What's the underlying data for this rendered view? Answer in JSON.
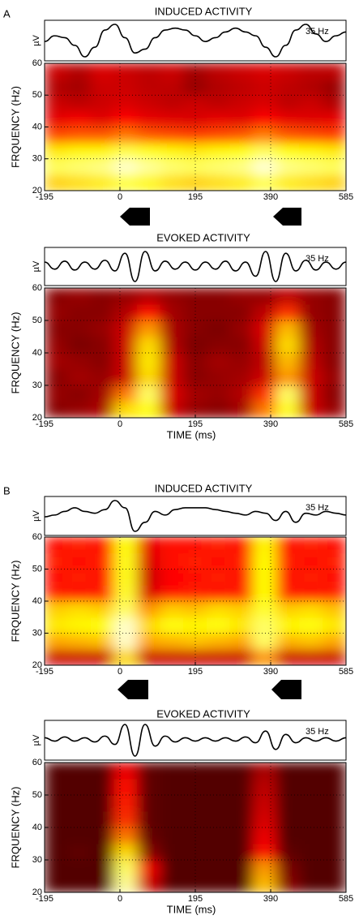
{
  "chart_data": [
    {
      "type": "heatmap",
      "panel": "A",
      "title": "INDUCED ACTIVITY",
      "ylabel": "FRQUENCY (Hz)",
      "xlim": [
        -195,
        585
      ],
      "xticks": [
        -195,
        0,
        195,
        390,
        585
      ],
      "ylim": [
        20,
        60
      ],
      "yticks": [
        20,
        30,
        40,
        50,
        60
      ],
      "grid": true,
      "wave_label": "µV",
      "wave_annotation": "35 Hz",
      "wave_x": [
        -195,
        -169,
        -143,
        -117,
        -91,
        -65,
        -39,
        -13,
        13,
        39,
        65,
        91,
        117,
        143,
        169,
        195,
        221,
        247,
        273,
        299,
        325,
        351,
        377,
        403,
        429,
        455,
        481,
        507,
        533,
        559,
        585
      ],
      "wave": [
        0,
        0.3,
        0.2,
        -0.2,
        -0.8,
        -0.3,
        0.6,
        0.9,
        0.2,
        -0.6,
        -0.4,
        0.2,
        0.6,
        0.7,
        0.6,
        0.3,
        0,
        0.2,
        0.5,
        0.7,
        0.5,
        0.3,
        -0.3,
        -0.8,
        -0.2,
        0.6,
        0.9,
        0.4,
        0,
        0.3,
        0.5
      ],
      "x": [
        -165,
        -105,
        -45,
        15,
        75,
        135,
        195,
        255,
        315,
        375,
        435,
        495,
        555
      ],
      "y": [
        22.5,
        27.5,
        32.5,
        37.5,
        42.5,
        47.5,
        52.5,
        57.5
      ],
      "z": [
        [
          0.68,
          0.7,
          0.72,
          0.8,
          0.74,
          0.7,
          0.68,
          0.7,
          0.72,
          0.82,
          0.72,
          0.7,
          0.68
        ],
        [
          0.84,
          0.86,
          0.88,
          0.95,
          0.9,
          0.86,
          0.84,
          0.86,
          0.88,
          0.96,
          0.88,
          0.86,
          0.84
        ],
        [
          0.72,
          0.74,
          0.74,
          0.82,
          0.78,
          0.74,
          0.72,
          0.74,
          0.76,
          0.84,
          0.76,
          0.74,
          0.72
        ],
        [
          0.48,
          0.5,
          0.5,
          0.55,
          0.5,
          0.48,
          0.46,
          0.48,
          0.5,
          0.56,
          0.5,
          0.48,
          0.46
        ],
        [
          0.34,
          0.36,
          0.33,
          0.38,
          0.34,
          0.33,
          0.32,
          0.34,
          0.33,
          0.38,
          0.34,
          0.33,
          0.34
        ],
        [
          0.3,
          0.28,
          0.3,
          0.32,
          0.3,
          0.28,
          0.3,
          0.28,
          0.3,
          0.32,
          0.28,
          0.3,
          0.26
        ],
        [
          0.26,
          0.24,
          0.3,
          0.3,
          0.28,
          0.28,
          0.22,
          0.26,
          0.28,
          0.3,
          0.28,
          0.26,
          0.22
        ],
        [
          0.3,
          0.26,
          0.32,
          0.3,
          0.28,
          0.3,
          0.24,
          0.28,
          0.3,
          0.32,
          0.3,
          0.28,
          0.28
        ]
      ]
    },
    {
      "type": "heatmap",
      "title": "EVOKED ACTIVITY",
      "ylabel": "FRQUENCY (Hz)",
      "xlabel": "TIME (ms)",
      "xlim": [
        -195,
        585
      ],
      "xticks": [
        -195,
        0,
        195,
        390,
        585
      ],
      "ylim": [
        20,
        60
      ],
      "yticks": [
        20,
        30,
        40,
        50,
        60
      ],
      "grid": true,
      "wave_label": "µV",
      "wave_annotation": "35 Hz",
      "wave_x": [
        -195,
        -169,
        -143,
        -117,
        -91,
        -65,
        -39,
        -13,
        13,
        39,
        65,
        91,
        117,
        143,
        169,
        195,
        221,
        247,
        273,
        299,
        325,
        351,
        377,
        403,
        429,
        455,
        481,
        507,
        533,
        559,
        585
      ],
      "wave": [
        0.2,
        -0.2,
        0.25,
        -0.25,
        0.2,
        -0.2,
        0.3,
        -0.3,
        0.7,
        -0.9,
        0.8,
        -0.3,
        0.25,
        -0.2,
        0.2,
        -0.25,
        0.2,
        -0.2,
        0.25,
        -0.3,
        0.2,
        -0.6,
        0.8,
        -0.9,
        0.7,
        -0.3,
        0.3,
        -0.25,
        0.2,
        -0.2,
        0.2
      ],
      "x": [
        -165,
        -105,
        -45,
        15,
        75,
        135,
        195,
        255,
        315,
        375,
        435,
        495,
        555
      ],
      "y": [
        22.5,
        27.5,
        32.5,
        37.5,
        42.5,
        47.5,
        52.5,
        57.5
      ],
      "z": [
        [
          0.2,
          0.22,
          0.25,
          0.7,
          0.75,
          0.3,
          0.22,
          0.2,
          0.24,
          0.55,
          0.78,
          0.3,
          0.22
        ],
        [
          0.22,
          0.2,
          0.24,
          0.55,
          0.85,
          0.32,
          0.24,
          0.22,
          0.26,
          0.45,
          0.85,
          0.3,
          0.2
        ],
        [
          0.2,
          0.24,
          0.22,
          0.3,
          0.7,
          0.3,
          0.2,
          0.22,
          0.24,
          0.3,
          0.6,
          0.3,
          0.22
        ],
        [
          0.24,
          0.22,
          0.2,
          0.3,
          0.72,
          0.3,
          0.2,
          0.24,
          0.22,
          0.28,
          0.65,
          0.28,
          0.2
        ],
        [
          0.22,
          0.18,
          0.2,
          0.3,
          0.7,
          0.26,
          0.18,
          0.2,
          0.2,
          0.3,
          0.7,
          0.26,
          0.2
        ],
        [
          0.2,
          0.2,
          0.22,
          0.3,
          0.6,
          0.25,
          0.2,
          0.18,
          0.22,
          0.32,
          0.65,
          0.24,
          0.2
        ],
        [
          0.22,
          0.2,
          0.2,
          0.26,
          0.4,
          0.24,
          0.2,
          0.2,
          0.2,
          0.28,
          0.45,
          0.22,
          0.2
        ],
        [
          0.2,
          0.22,
          0.2,
          0.22,
          0.26,
          0.22,
          0.2,
          0.2,
          0.22,
          0.22,
          0.28,
          0.22,
          0.2
        ]
      ]
    },
    {
      "type": "heatmap",
      "panel": "B",
      "title": "INDUCED ACTIVITY",
      "ylabel": "FRQUENCY (Hz)",
      "xlim": [
        -195,
        585
      ],
      "xticks": [
        -195,
        0,
        195,
        390,
        585
      ],
      "ylim": [
        20,
        60
      ],
      "yticks": [
        20,
        30,
        40,
        50,
        60
      ],
      "grid": true,
      "wave_label": "µV",
      "wave_annotation": "35 Hz",
      "wave_x": [
        -195,
        -169,
        -143,
        -117,
        -91,
        -65,
        -39,
        -13,
        13,
        39,
        65,
        91,
        117,
        143,
        169,
        195,
        221,
        247,
        273,
        299,
        325,
        351,
        377,
        403,
        429,
        455,
        481,
        507,
        533,
        559,
        585
      ],
      "wave": [
        0,
        0.1,
        0.3,
        0.5,
        0.3,
        0.2,
        0.4,
        0.9,
        0.5,
        -0.8,
        -0.3,
        0.3,
        0.1,
        0.4,
        0.5,
        0.5,
        0.5,
        0.4,
        0.3,
        0.2,
        0.1,
        0.3,
        0.2,
        -0.2,
        0.3,
        -0.3,
        0.2,
        0.1,
        0.3,
        0.2,
        0.1
      ],
      "x": [
        -165,
        -105,
        -45,
        15,
        75,
        135,
        195,
        255,
        315,
        375,
        435,
        495,
        555
      ],
      "y": [
        22.5,
        27.5,
        32.5,
        37.5,
        42.5,
        47.5,
        52.5,
        57.5
      ],
      "z": [
        [
          0.3,
          0.3,
          0.3,
          0.7,
          0.3,
          0.3,
          0.3,
          0.3,
          0.3,
          0.6,
          0.3,
          0.3,
          0.3
        ],
        [
          0.62,
          0.64,
          0.66,
          0.95,
          0.62,
          0.64,
          0.66,
          0.64,
          0.62,
          0.85,
          0.64,
          0.66,
          0.62
        ],
        [
          0.72,
          0.74,
          0.76,
          0.95,
          0.7,
          0.76,
          0.74,
          0.76,
          0.72,
          0.85,
          0.74,
          0.76,
          0.72
        ],
        [
          0.68,
          0.7,
          0.68,
          0.85,
          0.6,
          0.68,
          0.66,
          0.7,
          0.68,
          0.8,
          0.68,
          0.7,
          0.66
        ],
        [
          0.42,
          0.4,
          0.42,
          0.8,
          0.32,
          0.4,
          0.42,
          0.4,
          0.42,
          0.75,
          0.42,
          0.4,
          0.42
        ],
        [
          0.4,
          0.42,
          0.4,
          0.78,
          0.3,
          0.38,
          0.4,
          0.42,
          0.4,
          0.75,
          0.4,
          0.42,
          0.4
        ],
        [
          0.42,
          0.4,
          0.42,
          0.78,
          0.32,
          0.4,
          0.42,
          0.4,
          0.42,
          0.75,
          0.42,
          0.4,
          0.42
        ],
        [
          0.4,
          0.42,
          0.4,
          0.76,
          0.34,
          0.4,
          0.4,
          0.42,
          0.4,
          0.74,
          0.4,
          0.42,
          0.4
        ]
      ]
    },
    {
      "type": "heatmap",
      "title": "EVOKED ACTIVITY",
      "ylabel": "FRQUENCY (Hz)",
      "xlabel": "TIME (ms)",
      "xlim": [
        -195,
        585
      ],
      "xticks": [
        -195,
        0,
        195,
        390,
        585
      ],
      "ylim": [
        20,
        60
      ],
      "yticks": [
        20,
        30,
        40,
        50,
        60
      ],
      "grid": true,
      "wave_label": "µV",
      "wave_annotation": "35 Hz",
      "wave_x": [
        -195,
        -169,
        -143,
        -117,
        -91,
        -65,
        -39,
        -13,
        13,
        39,
        65,
        91,
        117,
        143,
        169,
        195,
        221,
        247,
        273,
        299,
        325,
        351,
        377,
        403,
        429,
        455,
        481,
        507,
        533,
        559,
        585
      ],
      "wave": [
        0.1,
        -0.1,
        0.15,
        -0.1,
        0.1,
        -0.15,
        0.2,
        -0.3,
        0.9,
        -1,
        0.9,
        -0.4,
        0.2,
        -0.15,
        0.1,
        -0.1,
        0.1,
        -0.1,
        0.1,
        -0.1,
        0.15,
        -0.2,
        0.5,
        -0.6,
        0.3,
        -0.2,
        0.1,
        -0.1,
        0.1,
        -0.1,
        0.1
      ],
      "x": [
        -165,
        -105,
        -45,
        15,
        75,
        135,
        195,
        255,
        315,
        375,
        435,
        495,
        555
      ],
      "y": [
        22.5,
        27.5,
        32.5,
        37.5,
        42.5,
        47.5,
        52.5,
        57.5
      ],
      "z": [
        [
          0.12,
          0.12,
          0.12,
          0.9,
          0.3,
          0.12,
          0.12,
          0.12,
          0.12,
          0.65,
          0.2,
          0.12,
          0.12
        ],
        [
          0.12,
          0.12,
          0.12,
          0.85,
          0.35,
          0.12,
          0.12,
          0.12,
          0.12,
          0.6,
          0.18,
          0.12,
          0.12
        ],
        [
          0.12,
          0.14,
          0.12,
          0.7,
          0.2,
          0.12,
          0.12,
          0.12,
          0.12,
          0.4,
          0.14,
          0.12,
          0.12
        ],
        [
          0.12,
          0.12,
          0.12,
          0.55,
          0.15,
          0.12,
          0.12,
          0.12,
          0.12,
          0.35,
          0.12,
          0.12,
          0.12
        ],
        [
          0.12,
          0.12,
          0.12,
          0.45,
          0.14,
          0.12,
          0.12,
          0.12,
          0.12,
          0.32,
          0.12,
          0.12,
          0.12
        ],
        [
          0.12,
          0.12,
          0.12,
          0.42,
          0.14,
          0.12,
          0.12,
          0.12,
          0.12,
          0.3,
          0.12,
          0.12,
          0.12
        ],
        [
          0.12,
          0.12,
          0.12,
          0.4,
          0.14,
          0.12,
          0.12,
          0.12,
          0.12,
          0.28,
          0.12,
          0.12,
          0.12
        ],
        [
          0.12,
          0.12,
          0.12,
          0.35,
          0.14,
          0.12,
          0.12,
          0.12,
          0.12,
          0.25,
          0.12,
          0.12,
          0.12
        ]
      ]
    }
  ]
}
